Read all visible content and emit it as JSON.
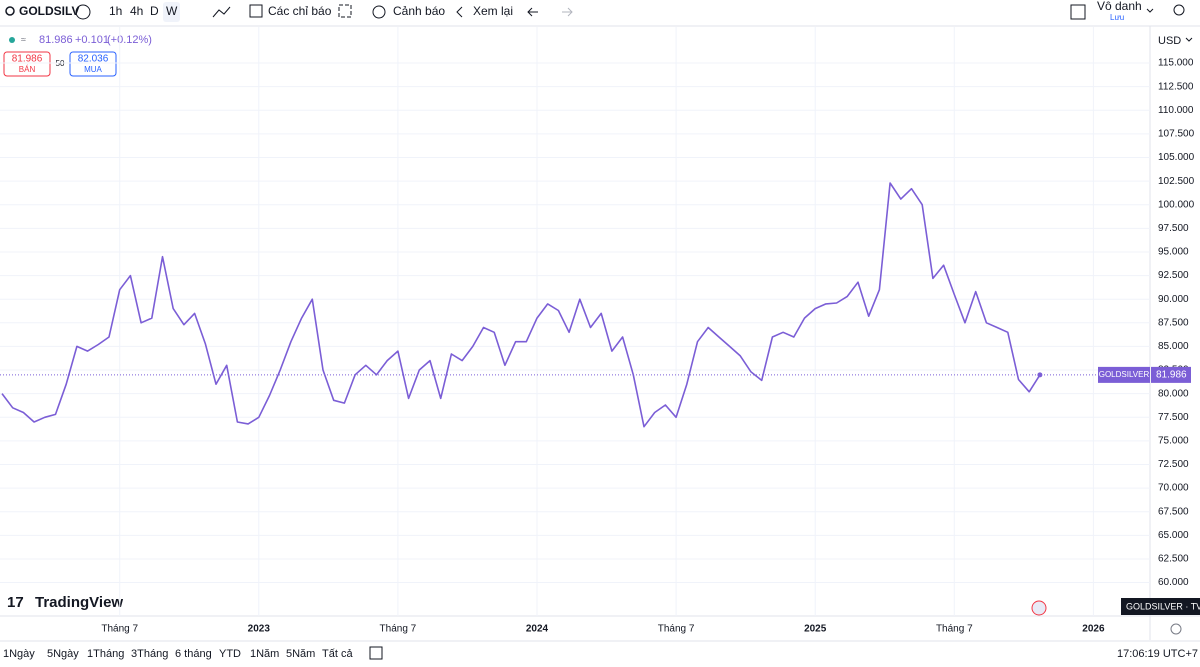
{
  "toolbar": {
    "symbol": "GOLDSILV",
    "intervals": [
      "1h",
      "4h",
      "D",
      "W"
    ],
    "indicators": "Các chỉ báo",
    "alerts": "Cảnh báo",
    "replay": "Xem lại",
    "account": "Vô danh",
    "save": "Lưu"
  },
  "legend": {
    "last": "81.986",
    "change": "+0.101",
    "change_pct": "(+0.12%)"
  },
  "trade": {
    "sell_price": "81.986",
    "sell": "BÁN",
    "spread": "50",
    "buy_price": "82.036",
    "buy": "MUA"
  },
  "currency": "USD",
  "brand": "TradingView",
  "symbol_badge": "GOLDSILVER · TVC",
  "ranges": [
    "1Ngày",
    "5Ngày",
    "1Tháng",
    "3Tháng",
    "6 tháng",
    "YTD",
    "1Năm",
    "5Năm",
    "Tất cả"
  ],
  "clock": "17:06:19 UTC+7",
  "chart_data": {
    "type": "line",
    "color": "#7b5ed6",
    "grid": true,
    "symbol": "GOLDSILVER",
    "price_tag": "81.986",
    "categories": [
      null,
      null,
      null,
      null,
      null,
      null,
      null,
      null,
      null,
      null,
      null,
      "Tháng 7",
      null,
      null,
      null,
      null,
      null,
      null,
      null,
      null,
      null,
      null,
      null,
      null,
      "2023",
      null,
      null,
      null,
      null,
      null,
      null,
      null,
      null,
      null,
      null,
      null,
      null,
      "Tháng 7",
      null,
      null,
      null,
      null,
      null,
      null,
      null,
      null,
      null,
      null,
      null,
      null,
      "2024",
      null,
      null,
      null,
      null,
      null,
      null,
      null,
      null,
      null,
      null,
      null,
      null,
      "Tháng 7",
      null,
      null,
      null,
      null,
      null,
      null,
      null,
      null,
      null,
      null,
      null,
      null,
      "2025",
      null,
      null,
      null,
      null,
      null,
      null,
      null,
      null,
      null,
      null,
      null,
      null,
      "Tháng 7",
      null,
      null,
      null,
      null,
      null,
      null,
      null,
      null,
      null,
      null,
      null,
      null,
      "2026"
    ],
    "values": [
      80,
      78.5,
      78,
      77,
      77.5,
      77.8,
      81,
      85,
      84.5,
      85.2,
      86,
      91,
      92.5,
      87.5,
      88,
      94.5,
      89,
      87.3,
      88.5,
      85.3,
      81,
      83,
      77,
      76.8,
      77.5,
      79.8,
      82.5,
      85.5,
      88,
      90,
      82.5,
      79.3,
      79,
      82,
      83,
      82,
      83.5,
      84.5,
      79.5,
      82.5,
      83.5,
      79.5,
      84.2,
      83.5,
      85,
      87,
      86.5,
      83,
      85.5,
      85.5,
      88,
      89.5,
      88.8,
      86.5,
      90,
      87,
      88.5,
      84.5,
      86,
      82,
      76.5,
      78,
      78.8,
      77.5,
      81,
      85.5,
      87,
      86,
      85,
      84,
      82.3,
      81.4,
      86,
      86.5,
      86,
      88,
      89,
      89.5,
      89.6,
      90.3,
      91.8,
      88.2,
      91,
      102.3,
      100.6,
      101.7,
      100,
      92.2,
      93.6,
      90.5,
      87.5,
      90.8,
      87.5,
      87,
      86.5,
      81.5,
      80.2,
      81.986,
      null,
      null,
      null,
      null,
      null
    ],
    "ylim": [
      59,
      118.5
    ],
    "yticks": [
      {
        "value": 60,
        "label": "60.000"
      },
      {
        "value": 62.5,
        "label": "62.500"
      },
      {
        "value": 65,
        "label": "65.000"
      },
      {
        "value": 67.5,
        "label": "67.500"
      },
      {
        "value": 70,
        "label": "70.000"
      },
      {
        "value": 72.5,
        "label": "72.500"
      },
      {
        "value": 75,
        "label": "75.000"
      },
      {
        "value": 77.5,
        "label": "77.500"
      },
      {
        "value": 80,
        "label": "80.000"
      },
      {
        "value": 82.5,
        "label": "82.500"
      },
      {
        "value": 85,
        "label": "85.000"
      },
      {
        "value": 87.5,
        "label": "87.500"
      },
      {
        "value": 90,
        "label": "90.000"
      },
      {
        "value": 92.5,
        "label": "92.500"
      },
      {
        "value": 95,
        "label": "95.000"
      },
      {
        "value": 97.5,
        "label": "97.500"
      },
      {
        "value": 100,
        "label": "100.000"
      },
      {
        "value": 102.5,
        "label": "102.500"
      },
      {
        "value": 105,
        "label": "105.000"
      },
      {
        "value": 107.5,
        "label": "107.500"
      },
      {
        "value": 110,
        "label": "110.000"
      },
      {
        "value": 112.5,
        "label": "112.500"
      },
      {
        "value": 115,
        "label": "115.000"
      }
    ]
  }
}
